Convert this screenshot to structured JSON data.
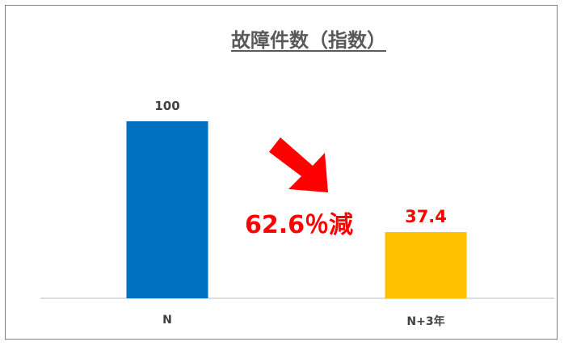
{
  "chart_data": {
    "type": "bar",
    "title": "故障件数（指数）",
    "categories": [
      "N",
      "N+3年"
    ],
    "values": [
      100,
      37.4
    ],
    "value_labels": [
      "100",
      "37.4"
    ],
    "bar_colors": [
      "#0070C0",
      "#FFC000"
    ],
    "value_label_colors": [
      "#404040",
      "#FF0000"
    ],
    "ylim": [
      0,
      100
    ],
    "grid": false,
    "legend": "none",
    "annotation": {
      "text": "62.6％減",
      "color": "#FF0000",
      "arrow": "red-arrow-down-right"
    }
  }
}
